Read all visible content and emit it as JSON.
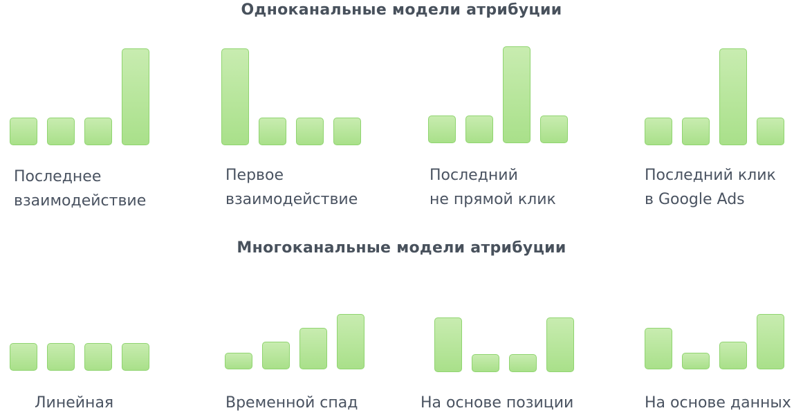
{
  "section_single": {
    "title": "Одноканальные модели атрибуции"
  },
  "section_multi": {
    "title": "Многоканальные модели атрибуции"
  },
  "colors": {
    "bar_fill_top": "#c8ecb0",
    "bar_fill_bottom": "#a9e08a",
    "bar_border": "#8fd46f",
    "text": "#4a5361",
    "title": "#48515c"
  },
  "models": [
    {
      "id": "last-interaction",
      "label_lines": [
        "Последнее",
        "взаимодействие"
      ],
      "values": [
        1,
        1,
        1,
        3.5
      ]
    },
    {
      "id": "first-interaction",
      "label_lines": [
        "Первое",
        "взаимодействие"
      ],
      "values": [
        3.5,
        1,
        1,
        1
      ]
    },
    {
      "id": "last-non-direct-click",
      "label_lines": [
        "Последний",
        "не прямой клик"
      ],
      "values": [
        1,
        1,
        3.5,
        1
      ]
    },
    {
      "id": "last-google-ads-click",
      "label_lines": [
        "Последний клик",
        "в Google Ads"
      ],
      "values": [
        1,
        1,
        3.5,
        1
      ]
    },
    {
      "id": "linear",
      "label_lines": [
        "Линейная"
      ],
      "values": [
        1,
        1,
        1,
        1
      ]
    },
    {
      "id": "time-decay",
      "label_lines": [
        "Временной спад"
      ],
      "values": [
        0.6,
        1,
        1.5,
        2
      ]
    },
    {
      "id": "position-based",
      "label_lines": [
        "На основе позиции"
      ],
      "values": [
        1.97,
        0.66,
        0.66,
        1.97
      ]
    },
    {
      "id": "data-driven",
      "label_lines": [
        "На основе данных"
      ],
      "values": [
        1.5,
        0.6,
        1,
        2
      ]
    }
  ]
}
